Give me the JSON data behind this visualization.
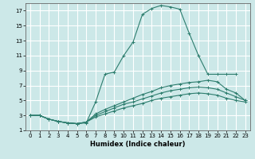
{
  "bg_color": "#cce8e8",
  "grid_color": "#aacccc",
  "line_color": "#2d7d6e",
  "xlabel": "Humidex (Indice chaleur)",
  "xlim": [
    -0.5,
    23.5
  ],
  "ylim": [
    1,
    18
  ],
  "xticks": [
    0,
    1,
    2,
    3,
    4,
    5,
    6,
    7,
    8,
    9,
    10,
    11,
    12,
    13,
    14,
    15,
    16,
    17,
    18,
    19,
    20,
    21,
    22,
    23
  ],
  "yticks": [
    1,
    3,
    5,
    7,
    9,
    11,
    13,
    15,
    17
  ],
  "curve1_x": [
    0,
    1,
    2,
    3,
    4,
    5,
    6,
    7,
    8,
    9,
    10,
    11,
    12,
    13,
    14,
    15,
    16,
    17,
    18,
    19,
    20,
    21,
    22
  ],
  "curve1_y": [
    3,
    3,
    2.5,
    2.2,
    2.0,
    1.9,
    2.0,
    4.8,
    8.5,
    8.8,
    11.0,
    12.8,
    16.5,
    17.3,
    17.7,
    17.5,
    17.2,
    14.0,
    11.0,
    8.5,
    8.5,
    8.5,
    8.5
  ],
  "curve2_x": [
    0,
    1,
    2,
    3,
    4,
    5,
    6,
    7,
    8,
    9,
    10,
    11,
    12,
    13,
    14,
    15,
    16,
    17,
    18,
    19,
    20,
    21,
    22,
    23
  ],
  "curve2_y": [
    3,
    3,
    2.5,
    2.2,
    2.0,
    1.9,
    2.1,
    3.2,
    3.8,
    4.3,
    4.8,
    5.3,
    5.8,
    6.2,
    6.7,
    7.0,
    7.2,
    7.4,
    7.5,
    7.7,
    7.5,
    6.5,
    6.0,
    5.0
  ],
  "curve3_x": [
    0,
    1,
    2,
    3,
    4,
    5,
    6,
    7,
    8,
    9,
    10,
    11,
    12,
    13,
    14,
    15,
    16,
    17,
    18,
    19,
    20,
    21,
    22,
    23
  ],
  "curve3_y": [
    3,
    3,
    2.5,
    2.2,
    2.0,
    1.9,
    2.1,
    3.0,
    3.5,
    4.0,
    4.5,
    4.8,
    5.2,
    5.6,
    6.0,
    6.3,
    6.5,
    6.7,
    6.8,
    6.7,
    6.5,
    6.0,
    5.5,
    5.0
  ],
  "curve4_x": [
    0,
    1,
    2,
    3,
    4,
    5,
    6,
    7,
    8,
    9,
    10,
    11,
    12,
    13,
    14,
    15,
    16,
    17,
    18,
    19,
    20,
    21,
    22,
    23
  ],
  "curve4_y": [
    3,
    3,
    2.5,
    2.2,
    2.0,
    1.9,
    2.1,
    2.8,
    3.2,
    3.6,
    4.0,
    4.3,
    4.6,
    5.0,
    5.3,
    5.5,
    5.7,
    5.9,
    6.0,
    5.9,
    5.7,
    5.3,
    5.0,
    4.8
  ]
}
